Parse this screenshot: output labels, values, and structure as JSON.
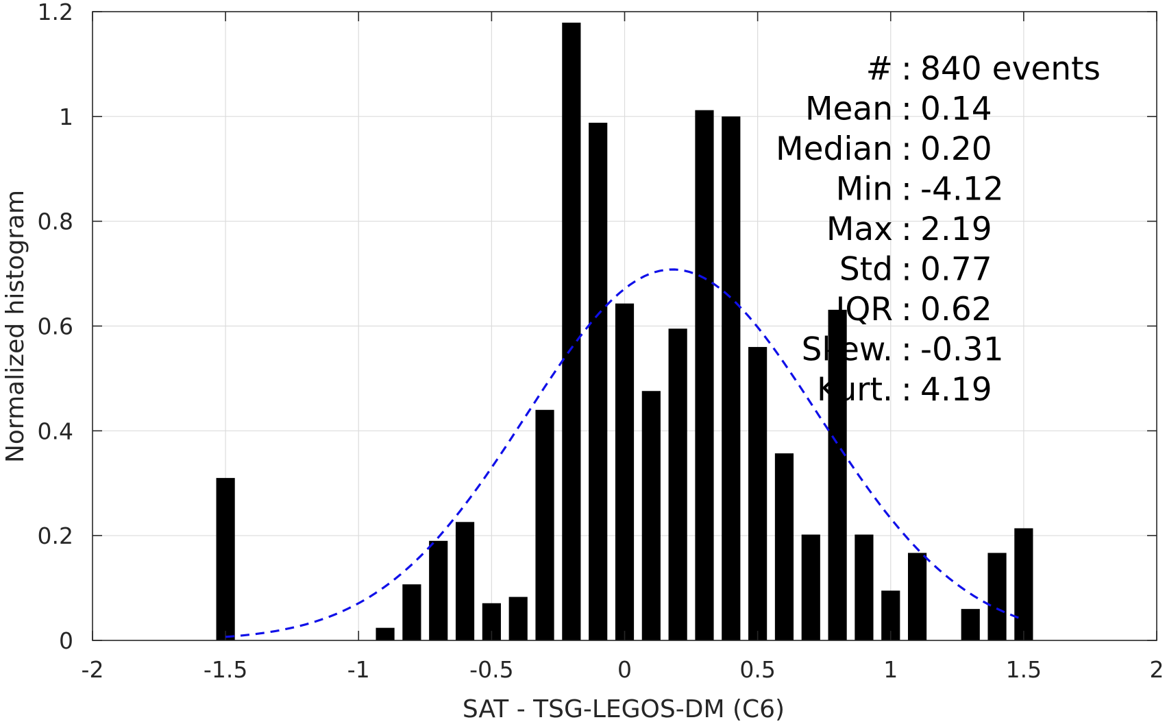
{
  "chart_data": {
    "type": "bar",
    "xlabel": "SAT - TSG-LEGOS-DM (C6)",
    "ylabel": "Normalized histogram",
    "xlim": [
      -2,
      2
    ],
    "ylim": [
      0,
      1.2
    ],
    "xticks": [
      -2,
      -1.5,
      -1,
      -0.5,
      0,
      0.5,
      1,
      1.5,
      2
    ],
    "xtick_labels": [
      "-2",
      "-1.5",
      "-1",
      "-0.5",
      "0",
      "0.5",
      "1",
      "1.5",
      "2"
    ],
    "yticks": [
      0,
      0.2,
      0.4,
      0.6,
      0.8,
      1,
      1.2
    ],
    "ytick_labels": [
      "0",
      "0.2",
      "0.4",
      "0.6",
      "0.8",
      "1",
      "1.2"
    ],
    "grid": true,
    "bar_width": 0.07,
    "bar_color": "#000000",
    "bins": [
      {
        "x": -1.5,
        "value": 0.31
      },
      {
        "x": -0.9,
        "value": 0.024
      },
      {
        "x": -0.8,
        "value": 0.107
      },
      {
        "x": -0.7,
        "value": 0.19
      },
      {
        "x": -0.6,
        "value": 0.226
      },
      {
        "x": -0.5,
        "value": 0.071
      },
      {
        "x": -0.4,
        "value": 0.083
      },
      {
        "x": -0.3,
        "value": 0.44
      },
      {
        "x": -0.2,
        "value": 1.179
      },
      {
        "x": -0.1,
        "value": 0.988
      },
      {
        "x": 0.0,
        "value": 0.643
      },
      {
        "x": 0.1,
        "value": 0.476
      },
      {
        "x": 0.2,
        "value": 0.595
      },
      {
        "x": 0.3,
        "value": 1.012
      },
      {
        "x": 0.4,
        "value": 1.0
      },
      {
        "x": 0.5,
        "value": 0.56
      },
      {
        "x": 0.6,
        "value": 0.357
      },
      {
        "x": 0.7,
        "value": 0.202
      },
      {
        "x": 0.8,
        "value": 0.631
      },
      {
        "x": 0.9,
        "value": 0.202
      },
      {
        "x": 1.0,
        "value": 0.095
      },
      {
        "x": 1.1,
        "value": 0.167
      },
      {
        "x": 1.3,
        "value": 0.06
      },
      {
        "x": 1.4,
        "value": 0.167
      },
      {
        "x": 1.5,
        "value": 0.214
      }
    ],
    "fit_curve": {
      "type": "gaussian",
      "style": "dashed",
      "color": "#1010e8",
      "mean": 0.18,
      "std": 0.55,
      "peak": 0.708,
      "x_range": [
        -1.5,
        1.5
      ]
    },
    "stats_annotation": [
      {
        "label": "#",
        "sep": ":",
        "value": "840 events"
      },
      {
        "label": "Mean",
        "sep": ":",
        "value": "0.14"
      },
      {
        "label": "Median",
        "sep": ":",
        "value": "0.20"
      },
      {
        "label": "Min",
        "sep": ":",
        "value": "-4.12"
      },
      {
        "label": "Max",
        "sep": ":",
        "value": "2.19"
      },
      {
        "label": "Std",
        "sep": ":",
        "value": "0.77"
      },
      {
        "label": "IQR",
        "sep": ":",
        "value": "0.62"
      },
      {
        "label": "Skew.",
        "sep": ":",
        "value": "-0.31"
      },
      {
        "label": "Kurt.",
        "sep": ":",
        "value": "4.19"
      }
    ]
  }
}
